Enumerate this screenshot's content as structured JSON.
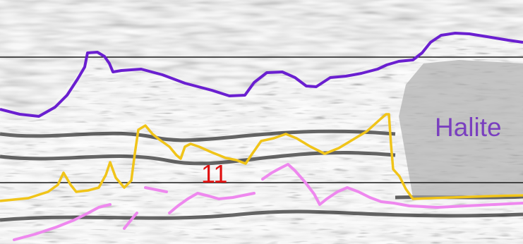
{
  "labels": {
    "halite": "Halite",
    "horizon_number": "11"
  },
  "colors": {
    "halite_label": "#7a3fbf",
    "horizon_number": "#e01010",
    "top_salt": "#6a1fd0",
    "yellow_horizon": "#f0c419",
    "pink_horizon": "#ee88ee",
    "reference_line": "#1a1a1a",
    "background": "#b9b9b9"
  }
}
